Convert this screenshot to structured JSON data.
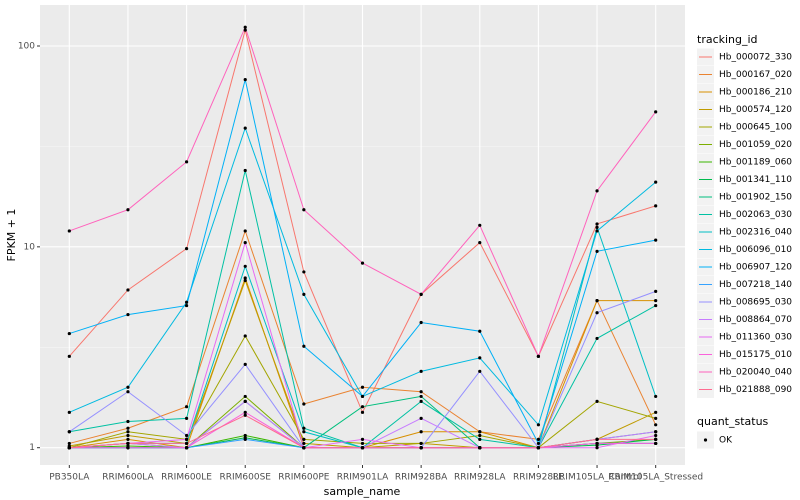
{
  "chart_data": {
    "type": "line",
    "log_scale": true,
    "grid": true,
    "x_label": "sample_name",
    "y_label": "FPKM + 1",
    "legend_title": "tracking_id",
    "legend_position": "right",
    "point_legend_title": "quant_status",
    "point_legend_labels": [
      "OK"
    ],
    "point_color": "#000000",
    "categories": [
      "PB350LA",
      "RRIM600LA",
      "RRIM600LE",
      "RRIM600SE",
      "RRIM600PE",
      "RRIM901LA",
      "RRIM928BA",
      "RRIM928LA",
      "RRIM928LE",
      "RRIM105LA_Control",
      "RRIM105LA_Stressed"
    ],
    "ylim": [
      0.82,
      160
    ],
    "yticks": [
      1,
      10,
      100
    ],
    "series": [
      {
        "name": "Hb_000072_330",
        "color": "#F8766D",
        "values": [
          2.85,
          6.1,
          9.8,
          120,
          7.5,
          1.5,
          5.8,
          10.5,
          2.85,
          13,
          16
        ]
      },
      {
        "name": "Hb_000167_020",
        "color": "#EA8331",
        "values": [
          1.05,
          1.25,
          1.6,
          12,
          1.65,
          2.0,
          1.9,
          1.2,
          1.1,
          5.4,
          1.3
        ]
      },
      {
        "name": "Hb_000186_210",
        "color": "#D89000",
        "values": [
          1.0,
          1.1,
          1.0,
          7,
          1.0,
          1.0,
          1.2,
          1.2,
          1.0,
          5.4,
          5.4
        ]
      },
      {
        "name": "Hb_000574_120",
        "color": "#C09B00",
        "values": [
          1.02,
          1.15,
          1.05,
          6.8,
          1.05,
          1.0,
          1.05,
          1.0,
          1.0,
          1.1,
          1.5
        ]
      },
      {
        "name": "Hb_000645_100",
        "color": "#A3A500",
        "values": [
          1.0,
          1.2,
          1.1,
          3.6,
          1.1,
          1.05,
          1.05,
          1.15,
          1.0,
          1.7,
          1.4
        ]
      },
      {
        "name": "Hb_001059_020",
        "color": "#7CAE00",
        "values": [
          1.0,
          1.05,
          1.0,
          1.8,
          1.0,
          1.0,
          1.0,
          1.0,
          1.0,
          1.05,
          1.1
        ]
      },
      {
        "name": "Hb_001189_060",
        "color": "#39B600",
        "values": [
          1.0,
          1.02,
          1.0,
          1.15,
          1.0,
          1.0,
          1.0,
          1.0,
          1.0,
          1.05,
          1.05
        ]
      },
      {
        "name": "Hb_001341_110",
        "color": "#00BB4E",
        "values": [
          1.0,
          1.0,
          1.0,
          1.12,
          1.0,
          1.0,
          1.0,
          1.0,
          1.0,
          1.03,
          1.1
        ]
      },
      {
        "name": "Hb_001902_150",
        "color": "#00BF7D",
        "values": [
          1.0,
          1.0,
          1.0,
          1.7,
          1.0,
          1.6,
          1.8,
          1.0,
          1.0,
          1.1,
          1.2
        ]
      },
      {
        "name": "Hb_002063_030",
        "color": "#00C1A3",
        "values": [
          1.2,
          1.35,
          1.4,
          24,
          1.25,
          1.0,
          1.7,
          1.1,
          1.0,
          3.5,
          5.1
        ]
      },
      {
        "name": "Hb_002316_040",
        "color": "#00BFC4",
        "values": [
          1.0,
          1.05,
          1.05,
          8,
          1.2,
          1.0,
          1.0,
          1.0,
          1.0,
          12.5,
          1.8
        ]
      },
      {
        "name": "Hb_006096_010",
        "color": "#00BAE0",
        "values": [
          1.5,
          2.0,
          5.3,
          39,
          5.8,
          1.8,
          2.4,
          2.8,
          1.3,
          12,
          21
        ]
      },
      {
        "name": "Hb_006907_120",
        "color": "#00B0F6",
        "values": [
          3.7,
          4.6,
          5.1,
          68,
          3.2,
          1.8,
          4.2,
          3.8,
          1.05,
          9.5,
          10.8
        ]
      },
      {
        "name": "Hb_007218_140",
        "color": "#35A2FF",
        "values": [
          1.0,
          1.0,
          1.0,
          1.1,
          1.0,
          1.0,
          1.0,
          1.0,
          1.0,
          1.05,
          1.05
        ]
      },
      {
        "name": "Hb_008695_030",
        "color": "#9590FF",
        "values": [
          1.2,
          1.9,
          1.15,
          2.6,
          1.0,
          1.0,
          1.0,
          2.4,
          1.0,
          4.7,
          6.0
        ]
      },
      {
        "name": "Hb_008864_070",
        "color": "#C77CFF",
        "values": [
          1.0,
          1.05,
          1.0,
          1.7,
          1.0,
          1.0,
          1.4,
          1.0,
          1.0,
          1.1,
          1.2
        ]
      },
      {
        "name": "Hb_011360_030",
        "color": "#E76BF3",
        "values": [
          1.0,
          1.05,
          1.1,
          10.5,
          1.0,
          1.1,
          1.0,
          1.0,
          1.0,
          1.0,
          1.15
        ]
      },
      {
        "name": "Hb_015175_010",
        "color": "#FA62DB",
        "values": [
          1.0,
          1.0,
          1.0,
          1.5,
          1.0,
          1.0,
          1.0,
          1.0,
          1.0,
          1.05,
          1.05
        ]
      },
      {
        "name": "Hb_020040_040",
        "color": "#FF62BC",
        "values": [
          12,
          15.3,
          26.5,
          124,
          15.3,
          8.3,
          5.8,
          12.8,
          2.85,
          19,
          47
        ]
      },
      {
        "name": "Hb_021888_090",
        "color": "#FF6C91",
        "values": [
          1.0,
          1.05,
          1.05,
          1.45,
          1.0,
          1.0,
          1.0,
          1.0,
          1.0,
          1.1,
          1.1
        ]
      }
    ]
  }
}
